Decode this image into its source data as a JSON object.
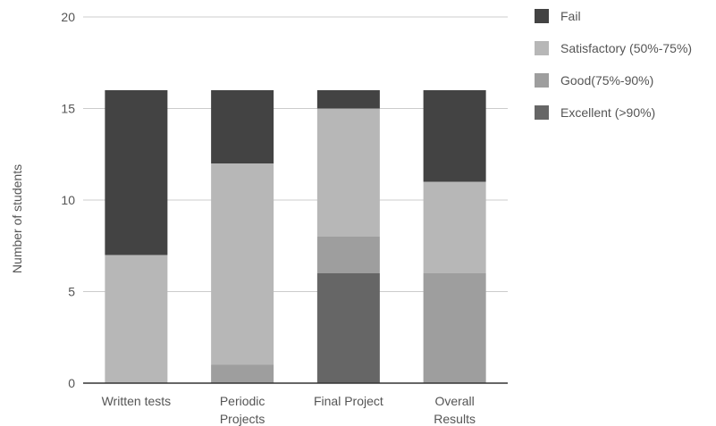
{
  "chart_data": {
    "type": "bar",
    "stacked": true,
    "categories": [
      [
        "Written tests"
      ],
      [
        "Periodic",
        "Projects"
      ],
      [
        "Final Project"
      ],
      [
        "Overall",
        "Results"
      ]
    ],
    "series": [
      {
        "name": "Excellent (>90%)",
        "color": "#666666",
        "values": [
          0,
          0,
          6,
          0
        ]
      },
      {
        "name": "Good(75%-90%)",
        "color": "#9e9e9e",
        "values": [
          0,
          1,
          2,
          6
        ]
      },
      {
        "name": "Satisfactory (50%-75%)",
        "color": "#b7b7b7",
        "values": [
          7,
          11,
          7,
          5
        ]
      },
      {
        "name": "Fail",
        "color": "#434343",
        "values": [
          9,
          4,
          1,
          5
        ]
      }
    ],
    "legend_order": [
      "Fail",
      "Satisfactory (50%-75%)",
      "Good(75%-90%)",
      "Excellent (>90%)"
    ],
    "ylabel": "Number of students",
    "xlabel": "",
    "ylim": [
      0,
      20
    ],
    "yticks": [
      0,
      5,
      10,
      15,
      20
    ],
    "grid": true,
    "legend_position": "right"
  }
}
